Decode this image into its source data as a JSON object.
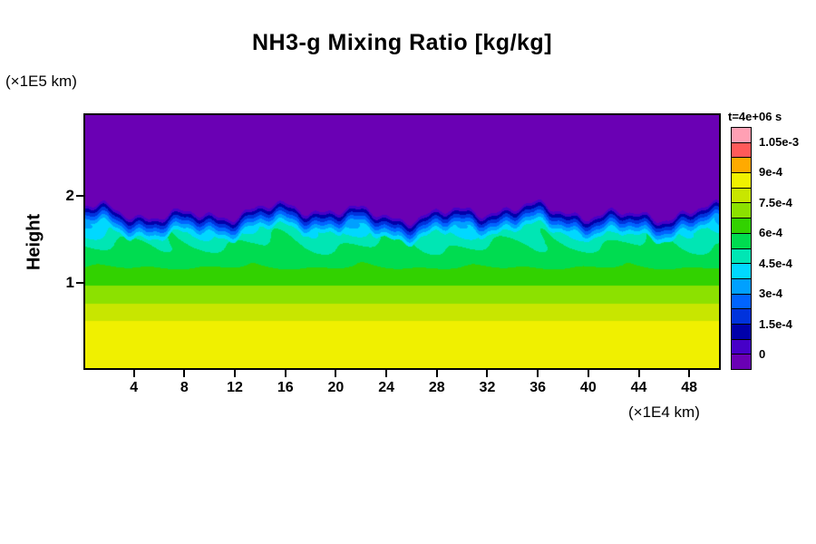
{
  "chart_data": {
    "type": "heatmap",
    "title": "NH3-g Mixing Ratio [kg/kg]",
    "xlabel": "(×1E4 km)",
    "ylabel": "Height",
    "ylabel_unit": "(×1E5 km)",
    "xlim": [
      0,
      50.5
    ],
    "ylim": [
      0,
      2.95
    ],
    "x_ticks": [
      4,
      8,
      12,
      16,
      20,
      24,
      28,
      32,
      36,
      40,
      44,
      48
    ],
    "y_ticks": [
      1,
      2
    ],
    "grid": false,
    "legend_position": "right-colorbar",
    "colorbar": {
      "title": "t=4e+06 s",
      "step": 7.5e-05,
      "range": [
        0,
        0.00105
      ],
      "tick_labels": [
        "0",
        "1.5e-4",
        "3e-4",
        "4.5e-4",
        "6e-4",
        "7.5e-4",
        "9e-4",
        "1.05e-3"
      ],
      "tick_boundaries": [
        1,
        3,
        5,
        7,
        9,
        11,
        13,
        15
      ],
      "colors": [
        "#6a00b4",
        "#4600c8",
        "#0000aa",
        "#0032dc",
        "#0064ff",
        "#00a0ff",
        "#00d8ff",
        "#00e6b4",
        "#00dc50",
        "#32d200",
        "#8ce100",
        "#c8e600",
        "#f0f000",
        "#ffaa00",
        "#ff5a5a",
        "#ffa0b4"
      ]
    },
    "field_model": {
      "profile_points": [
        [
          0,
          0.00089
        ],
        [
          0.5,
          0.000845
        ],
        [
          0.8,
          0.00073
        ],
        [
          1.0,
          0.00066
        ],
        [
          1.2,
          0.00059
        ],
        [
          1.45,
          0.00052
        ],
        [
          1.65,
          0.00044
        ],
        [
          2.0,
          0.00041
        ],
        [
          2.95,
          0.0004
        ]
      ],
      "interface": {
        "base": 1.82,
        "waves": [
          [
            0.05,
            0.35,
            2.0
          ],
          [
            0.06,
            0.9,
            0.7
          ],
          [
            0.035,
            2.2,
            4.1
          ],
          [
            0.02,
            4.5,
            1.3
          ]
        ]
      },
      "interface_ramp": {
        "depth": 0.25,
        "cap": 0.00046,
        "power": 0.9
      },
      "turbulence": {
        "amp": 9e-05,
        "h_start": 1.1,
        "h_full": 1.7,
        "f1": 1.05,
        "g1": 2.3,
        "p1": 0.6,
        "f2": 0.42,
        "g2": 7.5,
        "p2": 2.1
      }
    }
  }
}
